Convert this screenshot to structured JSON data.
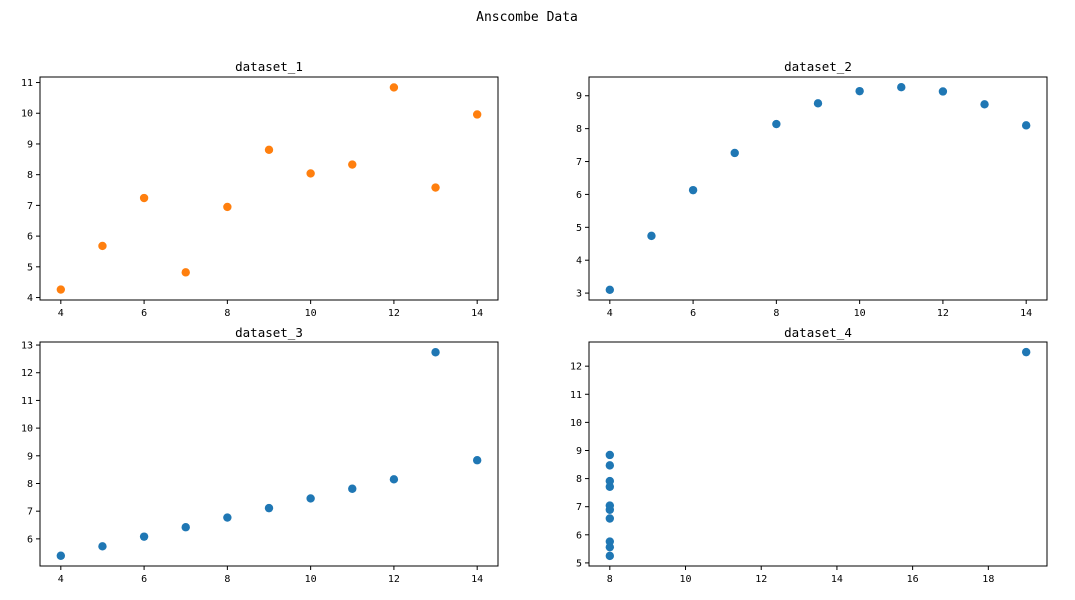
{
  "figure": {
    "suptitle": "Anscombe Data"
  },
  "chart_data": [
    {
      "type": "scatter",
      "title": "dataset_1",
      "color": "#ff7f0e",
      "x": [
        10,
        8,
        13,
        9,
        11,
        14,
        6,
        4,
        12,
        7,
        5
      ],
      "y": [
        8.04,
        6.95,
        7.58,
        8.81,
        8.33,
        9.96,
        7.24,
        4.26,
        10.84,
        4.82,
        5.68
      ],
      "xlim": [
        3.5,
        14.5
      ],
      "ylim": [
        3.92,
        11.18
      ],
      "xticks": [
        4,
        6,
        8,
        10,
        12,
        14
      ],
      "yticks": [
        4,
        5,
        6,
        7,
        8,
        9,
        10,
        11
      ],
      "xlabel": "",
      "ylabel": "",
      "grid": false
    },
    {
      "type": "scatter",
      "title": "dataset_2",
      "color": "#1f77b4",
      "x": [
        10,
        8,
        13,
        9,
        11,
        14,
        6,
        4,
        12,
        7,
        5
      ],
      "y": [
        9.14,
        8.14,
        8.74,
        8.77,
        9.26,
        8.1,
        6.13,
        3.1,
        9.13,
        7.26,
        4.74
      ],
      "xlim": [
        3.5,
        14.5
      ],
      "ylim": [
        2.79,
        9.57
      ],
      "xticks": [
        4,
        6,
        8,
        10,
        12,
        14
      ],
      "yticks": [
        3,
        4,
        5,
        6,
        7,
        8,
        9
      ],
      "xlabel": "",
      "ylabel": "",
      "grid": false
    },
    {
      "type": "scatter",
      "title": "dataset_3",
      "color": "#1f77b4",
      "x": [
        10,
        8,
        13,
        9,
        11,
        14,
        6,
        4,
        12,
        7,
        5
      ],
      "y": [
        7.46,
        6.77,
        12.74,
        7.11,
        7.81,
        8.84,
        6.08,
        5.39,
        8.15,
        6.42,
        5.73
      ],
      "xlim": [
        3.5,
        14.5
      ],
      "ylim": [
        5.02,
        13.11
      ],
      "xticks": [
        4,
        6,
        8,
        10,
        12,
        14
      ],
      "yticks": [
        6,
        7,
        8,
        9,
        10,
        11,
        12,
        13
      ],
      "xlabel": "",
      "ylabel": "",
      "grid": false
    },
    {
      "type": "scatter",
      "title": "dataset_4",
      "color": "#1f77b4",
      "x": [
        8,
        8,
        8,
        8,
        8,
        8,
        8,
        19,
        8,
        8,
        8
      ],
      "y": [
        6.58,
        5.76,
        7.71,
        8.84,
        8.47,
        7.04,
        5.25,
        12.5,
        5.56,
        7.91,
        6.89
      ],
      "xlim": [
        7.45,
        19.55
      ],
      "ylim": [
        4.89,
        12.86
      ],
      "xticks": [
        8,
        10,
        12,
        14,
        16,
        18
      ],
      "yticks": [
        5,
        6,
        7,
        8,
        9,
        10,
        11,
        12
      ],
      "xlabel": "",
      "ylabel": "",
      "grid": false
    }
  ]
}
